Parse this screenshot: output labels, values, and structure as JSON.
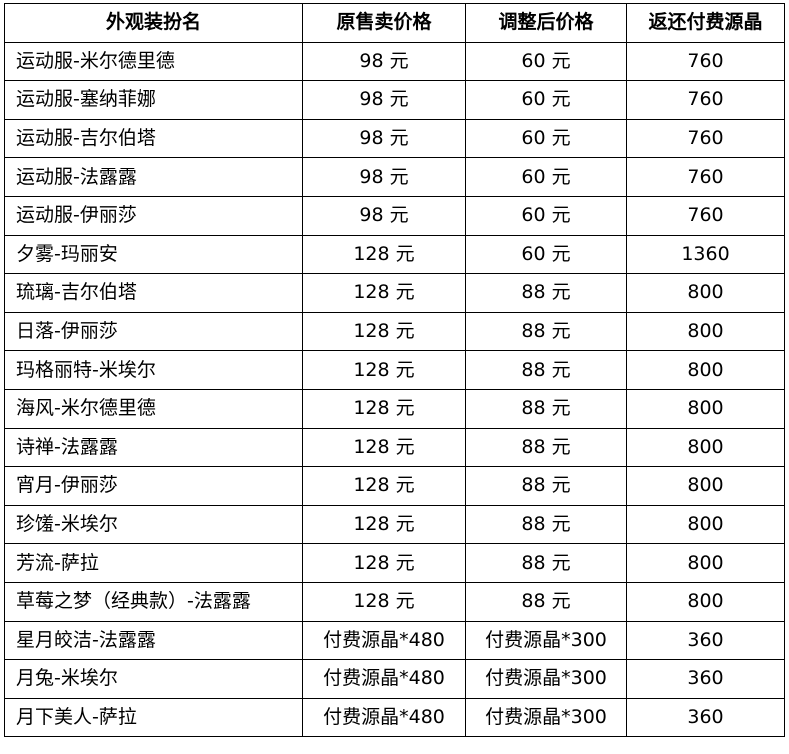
{
  "headers": [
    "外观装扮名",
    "原售卖价格",
    "调整后价格",
    "返还付费源晶"
  ],
  "rows": [
    [
      "运动服-米尔德里德",
      "98 元",
      "60 元",
      "760"
    ],
    [
      "运动服-塞纳菲娜",
      "98 元",
      "60 元",
      "760"
    ],
    [
      "运动服-吉尔伯塔",
      "98 元",
      "60 元",
      "760"
    ],
    [
      "运动服-法露露",
      "98 元",
      "60 元",
      "760"
    ],
    [
      "运动服-伊丽莎",
      "98 元",
      "60 元",
      "760"
    ],
    [
      "夕雾-玛丽安",
      "128 元",
      "60 元",
      "1360"
    ],
    [
      "琉璃-吉尔伯塔",
      "128 元",
      "88 元",
      "800"
    ],
    [
      "日落-伊丽莎",
      "128 元",
      "88 元",
      "800"
    ],
    [
      "玛格丽特-米埃尔",
      "128 元",
      "88 元",
      "800"
    ],
    [
      "海风-米尔德里德",
      "128 元",
      "88 元",
      "800"
    ],
    [
      "诗禅-法露露",
      "128 元",
      "88 元",
      "800"
    ],
    [
      "宵月-伊丽莎",
      "128 元",
      "88 元",
      "800"
    ],
    [
      "珍馐-米埃尔",
      "128 元",
      "88 元",
      "800"
    ],
    [
      "芳流-萨拉",
      "128 元",
      "88 元",
      "800"
    ],
    [
      "草莓之梦（经典款）-法露露",
      "128 元",
      "88 元",
      "800"
    ],
    [
      "星月皎洁-法露露",
      "付费源晶*480",
      "付费源晶*300",
      "360"
    ],
    [
      "月兔-米埃尔",
      "付费源晶*480",
      "付费源晶*300",
      "360"
    ],
    [
      "月下美人-萨拉",
      "付费源晶*480",
      "付费源晶*300",
      "360"
    ]
  ]
}
